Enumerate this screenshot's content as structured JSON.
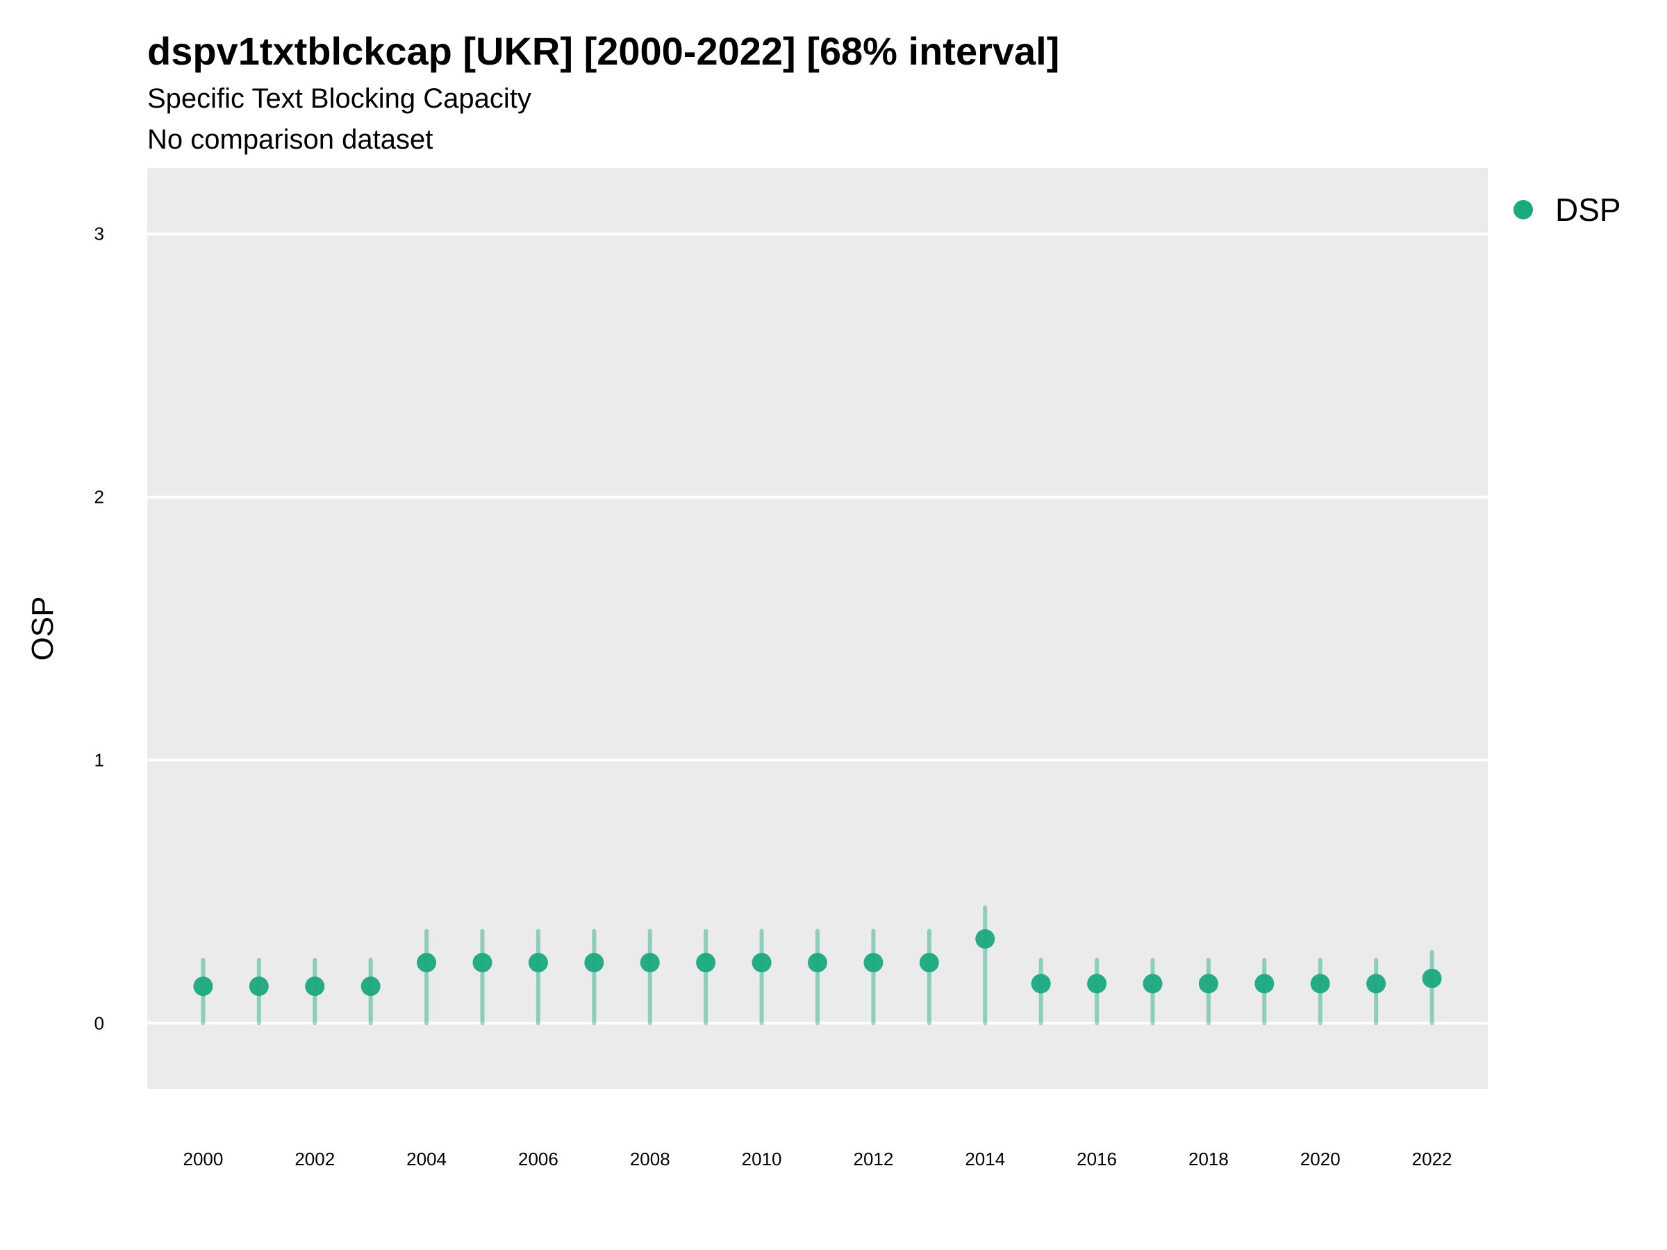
{
  "chart_data": {
    "type": "scatter",
    "title": "dspv1txtblckcap [UKR] [2000-2022] [68% interval]",
    "subtitle": "Specific Text Blocking Capacity",
    "subtitle2": "No comparison dataset",
    "xlabel": "",
    "ylabel": "OSP",
    "xlim": [
      1999,
      2023
    ],
    "ylim": [
      -0.25,
      3.25
    ],
    "y_ticks": [
      0,
      1,
      2,
      3
    ],
    "x_ticks": [
      2000,
      2002,
      2004,
      2006,
      2008,
      2010,
      2012,
      2014,
      2016,
      2018,
      2020,
      2022
    ],
    "grid": true,
    "legend_position": "top-right",
    "series": [
      {
        "name": "DSP",
        "color": "#1ba97f",
        "x": [
          2000,
          2001,
          2002,
          2003,
          2004,
          2005,
          2006,
          2007,
          2008,
          2009,
          2010,
          2011,
          2012,
          2013,
          2014,
          2015,
          2016,
          2017,
          2018,
          2019,
          2020,
          2021,
          2022
        ],
        "y": [
          0.14,
          0.14,
          0.14,
          0.14,
          0.23,
          0.23,
          0.23,
          0.23,
          0.23,
          0.23,
          0.23,
          0.23,
          0.23,
          0.23,
          0.32,
          0.15,
          0.15,
          0.15,
          0.15,
          0.15,
          0.15,
          0.15,
          0.17
        ],
        "lower": [
          0,
          0,
          0,
          0,
          0,
          0,
          0,
          0,
          0,
          0,
          0,
          0,
          0,
          0,
          0,
          0,
          0,
          0,
          0,
          0,
          0,
          0,
          0
        ],
        "upper": [
          0.24,
          0.24,
          0.24,
          0.24,
          0.35,
          0.35,
          0.35,
          0.35,
          0.35,
          0.35,
          0.35,
          0.35,
          0.35,
          0.35,
          0.44,
          0.24,
          0.24,
          0.24,
          0.24,
          0.24,
          0.24,
          0.24,
          0.27
        ]
      }
    ]
  }
}
